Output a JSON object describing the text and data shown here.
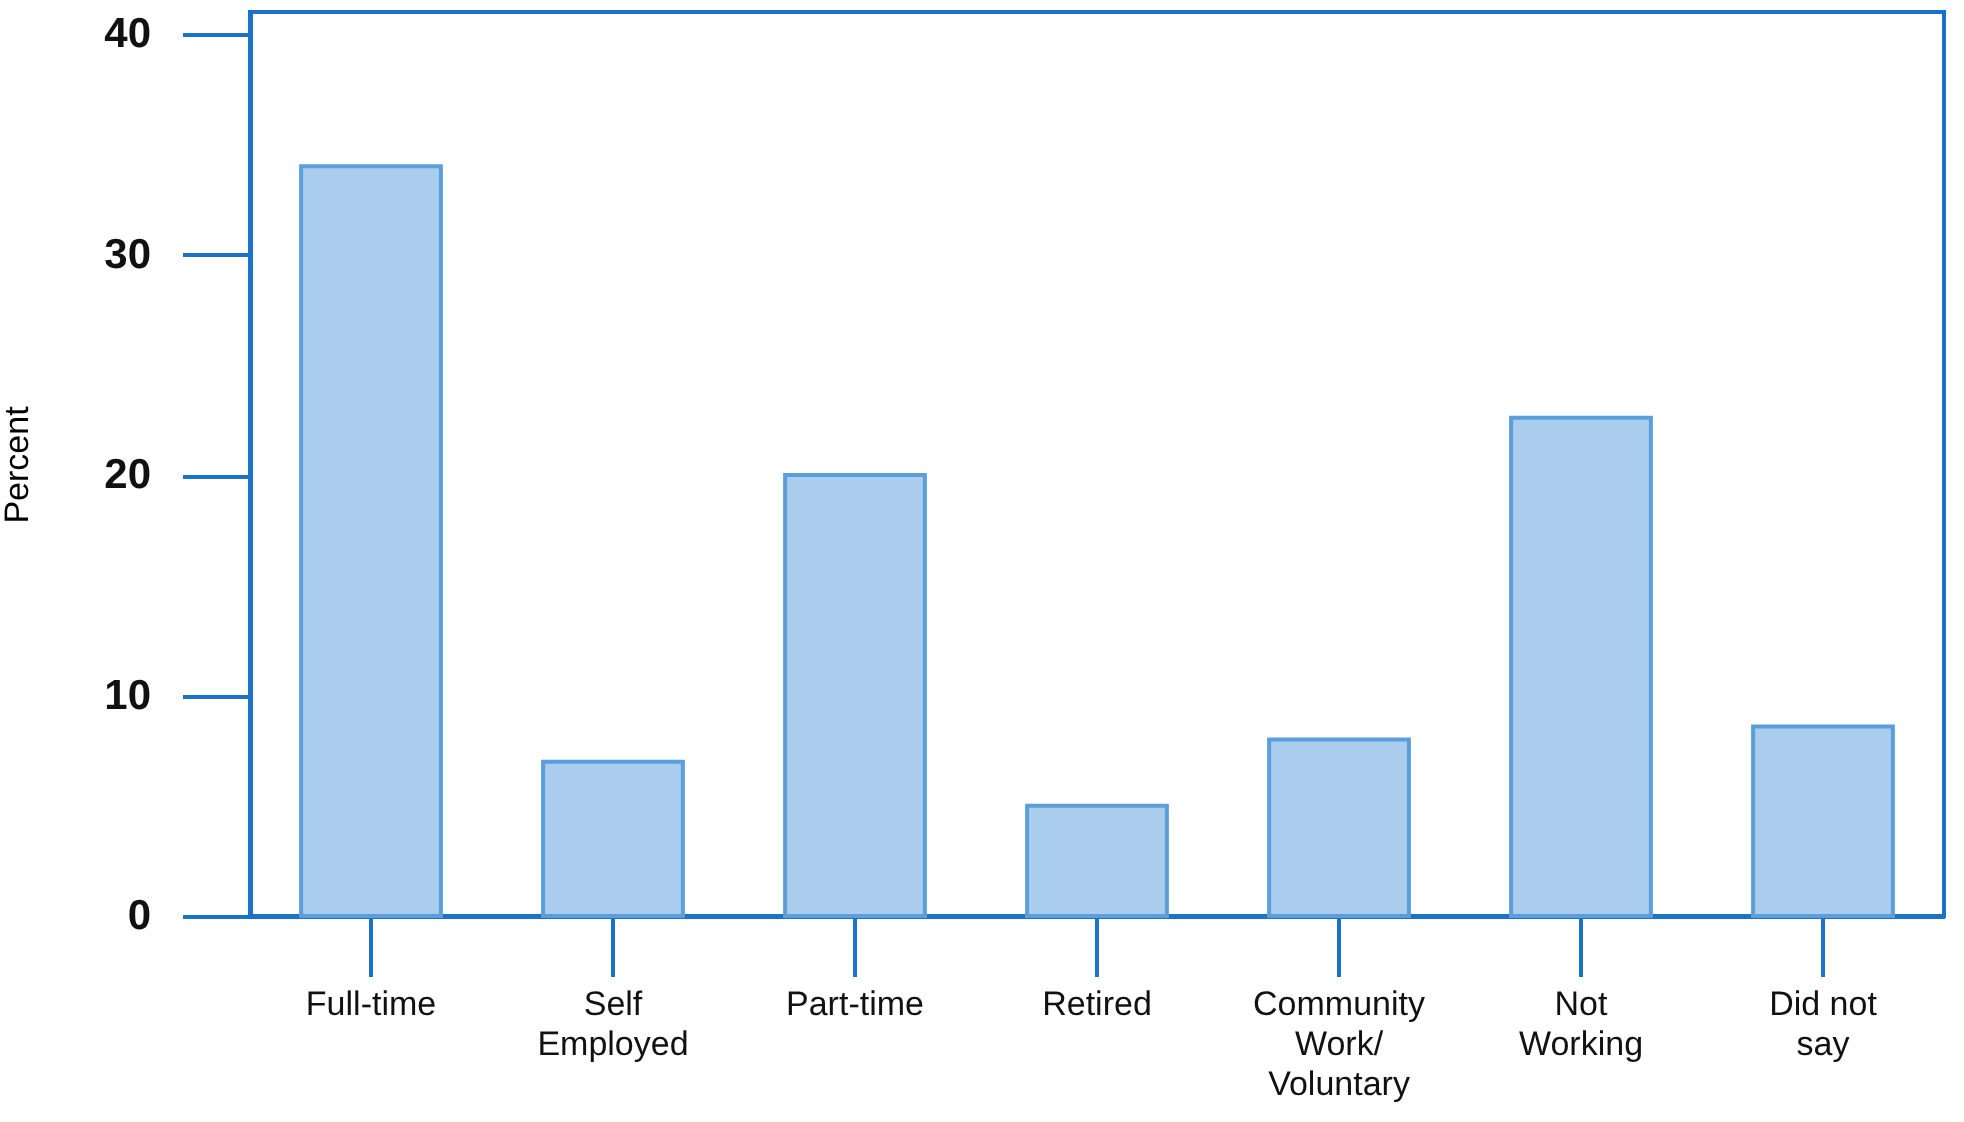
{
  "chart_data": {
    "type": "bar",
    "ylabel": "Percent",
    "categories": [
      "Full-time",
      "Self\nEmployed",
      "Part-time",
      "Retired",
      "Community\nWork/\nVoluntary",
      "Not\nWorking",
      "Did not\nsay"
    ],
    "values": [
      34,
      7,
      20,
      5,
      8,
      22.6,
      8.6
    ],
    "color": "#aacdee",
    "ylim": [
      0,
      41
    ],
    "yticks": [
      0,
      10,
      20,
      30,
      40
    ],
    "grid": false
  }
}
